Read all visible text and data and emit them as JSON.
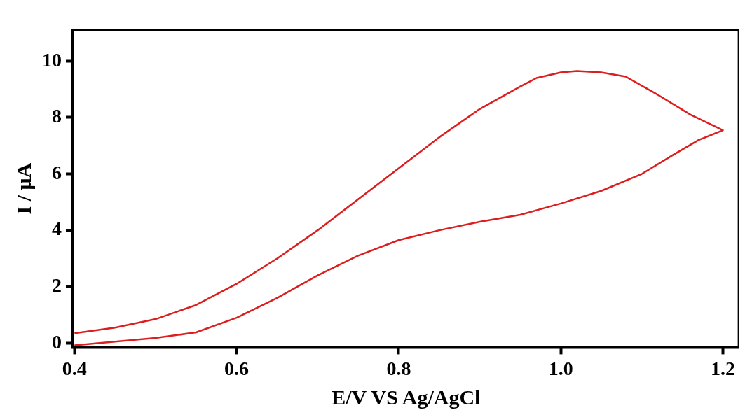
{
  "chart_data": {
    "type": "line",
    "xlabel": "E/V VS Ag/AgCl",
    "ylabel": "I / μA",
    "xlim": [
      0.398,
      1.22
    ],
    "ylim": [
      -0.15,
      11.1
    ],
    "xticks": [
      {
        "value": 0.4,
        "label": "0.4"
      },
      {
        "value": 0.6,
        "label": "0.6"
      },
      {
        "value": 0.8,
        "label": "0.8"
      },
      {
        "value": 1.0,
        "label": "1.0"
      },
      {
        "value": 1.2,
        "label": "1.2"
      }
    ],
    "yticks": [
      0,
      2,
      4,
      6,
      8,
      10
    ],
    "grid": false,
    "legend": false,
    "marker": "none",
    "series": [
      {
        "color": "#dc1e1e",
        "x": [
          0.4,
          0.45,
          0.5,
          0.55,
          0.6,
          0.65,
          0.7,
          0.75,
          0.8,
          0.85,
          0.9,
          0.95,
          1.0,
          1.05,
          1.1,
          1.14,
          1.17,
          1.2,
          1.16,
          1.12,
          1.08,
          1.05,
          1.02,
          1.0,
          0.97,
          0.95,
          0.9,
          0.85,
          0.8,
          0.75,
          0.7,
          0.65,
          0.6,
          0.55,
          0.5,
          0.45,
          0.4
        ],
        "values": [
          -0.08,
          0.05,
          0.18,
          0.38,
          0.9,
          1.6,
          2.4,
          3.1,
          3.65,
          4.0,
          4.3,
          4.55,
          4.95,
          5.4,
          6.0,
          6.7,
          7.2,
          7.55,
          8.1,
          8.8,
          9.45,
          9.6,
          9.65,
          9.6,
          9.4,
          9.1,
          8.3,
          7.3,
          6.2,
          5.1,
          4.0,
          3.0,
          2.1,
          1.35,
          0.85,
          0.55,
          0.35
        ]
      }
    ]
  }
}
